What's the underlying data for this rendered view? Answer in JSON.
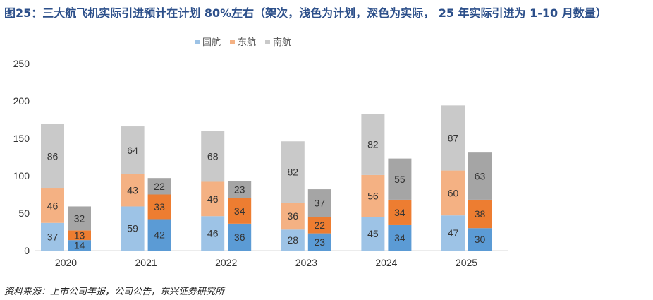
{
  "header": {
    "title": "图25：三大航飞机实际引进预计在计划 80%左右（架次，浅色为计划，深色为实际， 25 年实际引进为 1-10 月数量）"
  },
  "footer": {
    "source": "资料来源：上市公司年报，公司公告，东兴证券研究所"
  },
  "chart_data": {
    "type": "bar",
    "stacked": true,
    "title": "三大航飞机实际引进预计在计划 80%左右（架次，浅色为计划，深色为实际， 25 年实际引进为 1-10 月数量）",
    "categories": [
      "2020",
      "2021",
      "2022",
      "2023",
      "2024",
      "2025"
    ],
    "groups": [
      "计划",
      "实际"
    ],
    "ylim": [
      0,
      250
    ],
    "yticks": [
      0,
      50,
      100,
      150,
      200,
      250
    ],
    "legend": [
      "国航",
      "东航",
      "南航"
    ],
    "legend_position": "top-center",
    "colors": {
      "plan": {
        "国航": "#9dc3e6",
        "东航": "#f4b183",
        "南航": "#c9c9c9"
      },
      "actual": {
        "国航": "#5b9bd5",
        "东航": "#ed7d31",
        "南航": "#a5a5a5"
      }
    },
    "plan": {
      "国航": [
        37,
        59,
        46,
        28,
        45,
        47
      ],
      "东航": [
        46,
        43,
        46,
        36,
        56,
        60
      ],
      "南航": [
        86,
        64,
        68,
        82,
        82,
        87
      ]
    },
    "actual": {
      "国航": [
        14,
        42,
        36,
        23,
        34,
        30
      ],
      "东航": [
        13,
        33,
        34,
        22,
        34,
        38
      ],
      "南航": [
        32,
        22,
        23,
        37,
        55,
        63
      ]
    }
  }
}
